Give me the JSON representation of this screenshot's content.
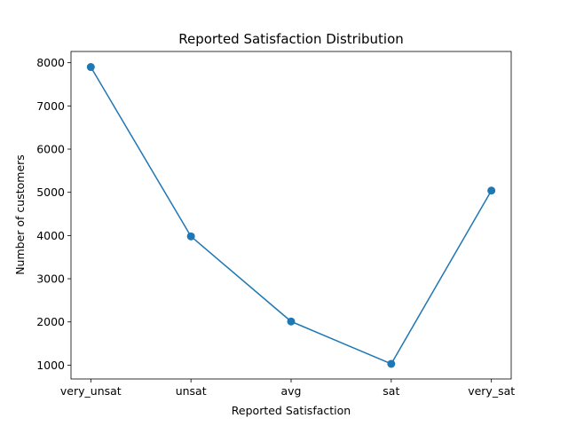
{
  "chart_data": {
    "type": "line",
    "title": "Reported Satisfaction Distribution",
    "xlabel": "Reported Satisfaction",
    "ylabel": "Number of customers",
    "categories": [
      "very_unsat",
      "unsat",
      "avg",
      "sat",
      "very_sat"
    ],
    "series": [
      {
        "values": [
          7900,
          3980,
          2010,
          1030,
          5040
        ],
        "color": "#1f77b4",
        "marker": "circle"
      }
    ],
    "yticks": [
      1000,
      2000,
      3000,
      4000,
      5000,
      6000,
      7000,
      8000
    ],
    "ylim": [
      680,
      8260
    ],
    "grid": false,
    "legend": false
  }
}
